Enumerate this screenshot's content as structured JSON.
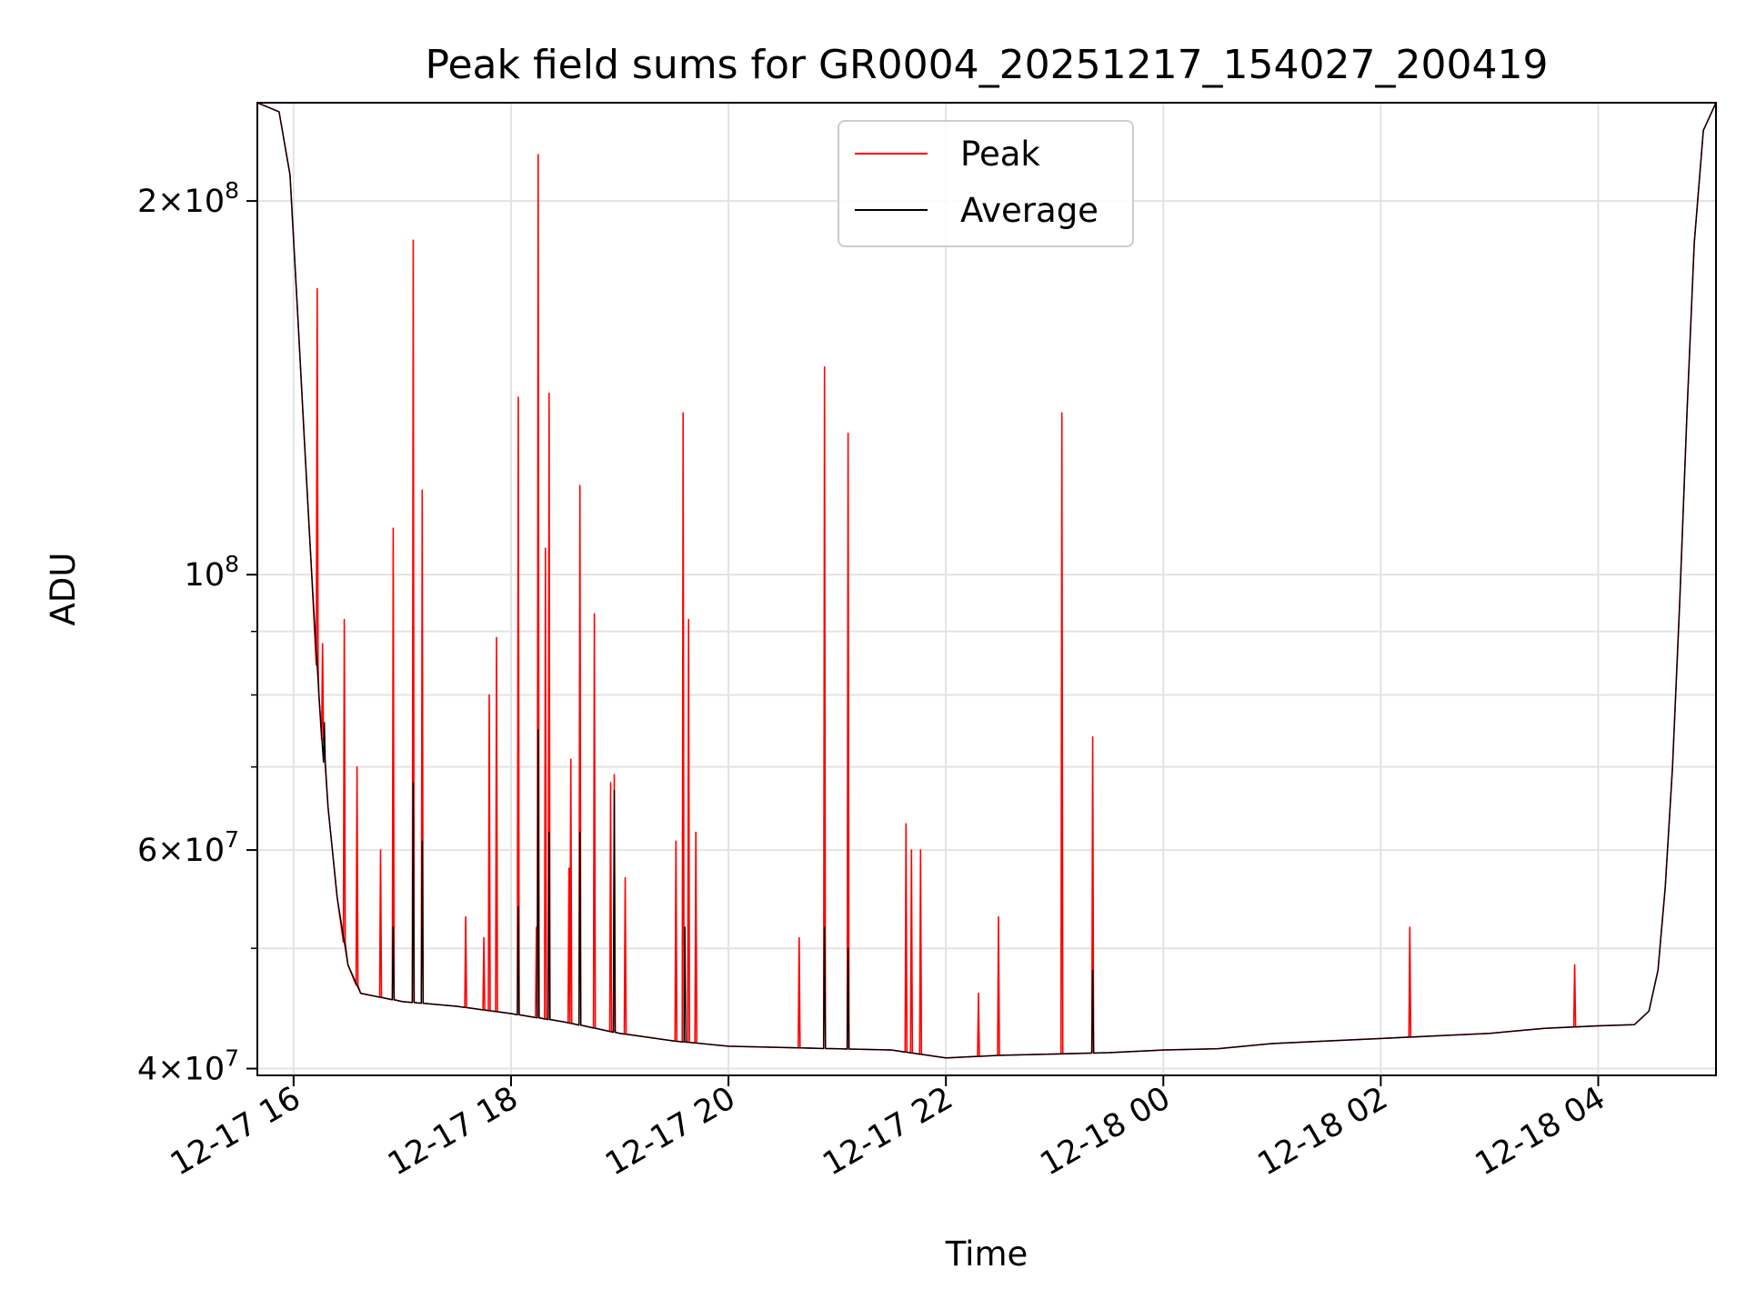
{
  "chart_data": {
    "type": "line",
    "title": "Peak field sums for GR0004_20251217_154027_200419",
    "xlabel": "Time",
    "ylabel": "ADU",
    "yscale": "log",
    "xlim": [
      "2025-12-17 15:40",
      "2025-12-18 05:05"
    ],
    "ylim": [
      39500000,
      240000000
    ],
    "grid": true,
    "legend_position": "upper center",
    "x_ticks": [
      {
        "time": "2025-12-17 16:00",
        "label": "12-17 16"
      },
      {
        "time": "2025-12-17 18:00",
        "label": "12-17 18"
      },
      {
        "time": "2025-12-17 20:00",
        "label": "12-17 20"
      },
      {
        "time": "2025-12-17 22:00",
        "label": "12-17 22"
      },
      {
        "time": "2025-12-18 00:00",
        "label": "12-18 00"
      },
      {
        "time": "2025-12-18 02:00",
        "label": "12-18 02"
      },
      {
        "time": "2025-12-18 04:00",
        "label": "12-18 04"
      }
    ],
    "y_major_ticks": [
      {
        "value": 40000000,
        "mantissa": "4",
        "exp": "7"
      },
      {
        "value": 60000000,
        "mantissa": "6",
        "exp": "7"
      },
      {
        "value": 100000000,
        "mantissa": "",
        "exp": "8"
      },
      {
        "value": 200000000,
        "mantissa": "2",
        "exp": "8"
      }
    ],
    "y_minor_ticks": [
      50000000,
      70000000,
      80000000,
      90000000
    ],
    "series": [
      {
        "name": "Peak",
        "color": "#ff0000",
        "spikes": [
          [
            "2025-12-17 16:13",
            170000000
          ],
          [
            "2025-12-17 16:16",
            88000000
          ],
          [
            "2025-12-17 16:28",
            92000000
          ],
          [
            "2025-12-17 16:35",
            70000000
          ],
          [
            "2025-12-17 16:48",
            60000000
          ],
          [
            "2025-12-17 16:55",
            109000000
          ],
          [
            "2025-12-17 17:06",
            186000000
          ],
          [
            "2025-12-17 17:11",
            117000000
          ],
          [
            "2025-12-17 17:35",
            53000000
          ],
          [
            "2025-12-17 17:45",
            51000000
          ],
          [
            "2025-12-17 17:48",
            80000000
          ],
          [
            "2025-12-17 17:52",
            89000000
          ],
          [
            "2025-12-17 18:04",
            139000000
          ],
          [
            "2025-12-17 18:14",
            52000000
          ],
          [
            "2025-12-17 18:15",
            218000000
          ],
          [
            "2025-12-17 18:19",
            105000000
          ],
          [
            "2025-12-17 18:21",
            140000000
          ],
          [
            "2025-12-17 18:32",
            58000000
          ],
          [
            "2025-12-17 18:33",
            71000000
          ],
          [
            "2025-12-17 18:38",
            118000000
          ],
          [
            "2025-12-17 18:46",
            93000000
          ],
          [
            "2025-12-17 18:55",
            68000000
          ],
          [
            "2025-12-17 18:57",
            69000000
          ],
          [
            "2025-12-17 19:03",
            57000000
          ],
          [
            "2025-12-17 19:31",
            61000000
          ],
          [
            "2025-12-17 19:35",
            135000000
          ],
          [
            "2025-12-17 19:38",
            92000000
          ],
          [
            "2025-12-17 19:42",
            62000000
          ],
          [
            "2025-12-17 20:39",
            51000000
          ],
          [
            "2025-12-17 20:53",
            147000000
          ],
          [
            "2025-12-17 21:06",
            130000000
          ],
          [
            "2025-12-17 21:38",
            63000000
          ],
          [
            "2025-12-17 21:41",
            60000000
          ],
          [
            "2025-12-17 21:46",
            60000000
          ],
          [
            "2025-12-17 22:18",
            46000000
          ],
          [
            "2025-12-17 22:29",
            53000000
          ],
          [
            "2025-12-17 23:04",
            135000000
          ],
          [
            "2025-12-17 23:21",
            74000000
          ],
          [
            "2025-12-18 02:16",
            52000000
          ],
          [
            "2025-12-18 03:47",
            48500000
          ]
        ]
      },
      {
        "name": "Average",
        "color": "#000000",
        "trend": [
          [
            "2025-12-17 15:40",
            240000000
          ],
          [
            "2025-12-17 15:52",
            236000000
          ],
          [
            "2025-12-17 15:58",
            210000000
          ],
          [
            "2025-12-17 16:02",
            165000000
          ],
          [
            "2025-12-17 16:06",
            128000000
          ],
          [
            "2025-12-17 16:10",
            100000000
          ],
          [
            "2025-12-17 16:14",
            80000000
          ],
          [
            "2025-12-17 16:19",
            65000000
          ],
          [
            "2025-12-17 16:24",
            55000000
          ],
          [
            "2025-12-17 16:30",
            48500000
          ],
          [
            "2025-12-17 16:37",
            46000000
          ],
          [
            "2025-12-17 17:00",
            45300000
          ],
          [
            "2025-12-17 17:30",
            44900000
          ],
          [
            "2025-12-17 18:00",
            44300000
          ],
          [
            "2025-12-17 18:30",
            43600000
          ],
          [
            "2025-12-17 19:00",
            42700000
          ],
          [
            "2025-12-17 19:30",
            42100000
          ],
          [
            "2025-12-17 20:00",
            41700000
          ],
          [
            "2025-12-17 20:30",
            41600000
          ],
          [
            "2025-12-17 21:00",
            41500000
          ],
          [
            "2025-12-17 21:30",
            41400000
          ],
          [
            "2025-12-17 22:00",
            40800000
          ],
          [
            "2025-12-17 22:30",
            41000000
          ],
          [
            "2025-12-17 23:00",
            41100000
          ],
          [
            "2025-12-17 23:30",
            41200000
          ],
          [
            "2025-12-18 00:00",
            41400000
          ],
          [
            "2025-12-18 00:30",
            41500000
          ],
          [
            "2025-12-18 01:00",
            41900000
          ],
          [
            "2025-12-18 01:30",
            42100000
          ],
          [
            "2025-12-18 02:00",
            42300000
          ],
          [
            "2025-12-18 02:30",
            42500000
          ],
          [
            "2025-12-18 03:00",
            42700000
          ],
          [
            "2025-12-18 03:30",
            43100000
          ],
          [
            "2025-12-18 04:00",
            43300000
          ],
          [
            "2025-12-18 04:20",
            43400000
          ],
          [
            "2025-12-18 04:28",
            44500000
          ],
          [
            "2025-12-18 04:33",
            48000000
          ],
          [
            "2025-12-18 04:37",
            56000000
          ],
          [
            "2025-12-18 04:41",
            70000000
          ],
          [
            "2025-12-18 04:45",
            95000000
          ],
          [
            "2025-12-18 04:49",
            135000000
          ],
          [
            "2025-12-18 04:53",
            185000000
          ],
          [
            "2025-12-18 04:58",
            228000000
          ],
          [
            "2025-12-18 05:05",
            240000000
          ]
        ],
        "spikes": [
          [
            "2025-12-17 16:17",
            76000000
          ],
          [
            "2025-12-17 16:55",
            52000000
          ],
          [
            "2025-12-17 17:06",
            68000000
          ],
          [
            "2025-12-17 17:11",
            61000000
          ],
          [
            "2025-12-17 18:04",
            54000000
          ],
          [
            "2025-12-17 18:15",
            75000000
          ],
          [
            "2025-12-17 18:21",
            62000000
          ],
          [
            "2025-12-17 18:38",
            62000000
          ],
          [
            "2025-12-17 18:57",
            67000000
          ],
          [
            "2025-12-17 19:36",
            52000000
          ],
          [
            "2025-12-17 20:53",
            52000000
          ],
          [
            "2025-12-17 21:06",
            50000000
          ],
          [
            "2025-12-17 23:21",
            48000000
          ]
        ]
      }
    ]
  }
}
